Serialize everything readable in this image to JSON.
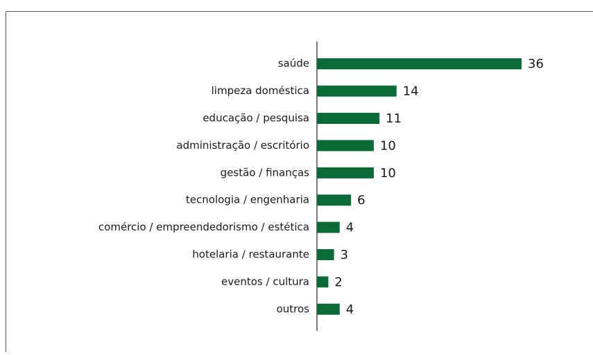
{
  "chart_data": {
    "type": "bar",
    "orientation": "horizontal",
    "categories": [
      "saúde",
      "limpeza doméstica",
      "educação / pesquisa",
      "administração / escritório",
      "gestão / finanças",
      "tecnologia / engenharia",
      "comércio / empreendedorismo / estética",
      "hotelaria / restaurante",
      "eventos / cultura",
      "outros"
    ],
    "values": [
      36,
      14,
      11,
      10,
      10,
      6,
      4,
      3,
      2,
      4
    ],
    "color": "#0b6b36"
  }
}
